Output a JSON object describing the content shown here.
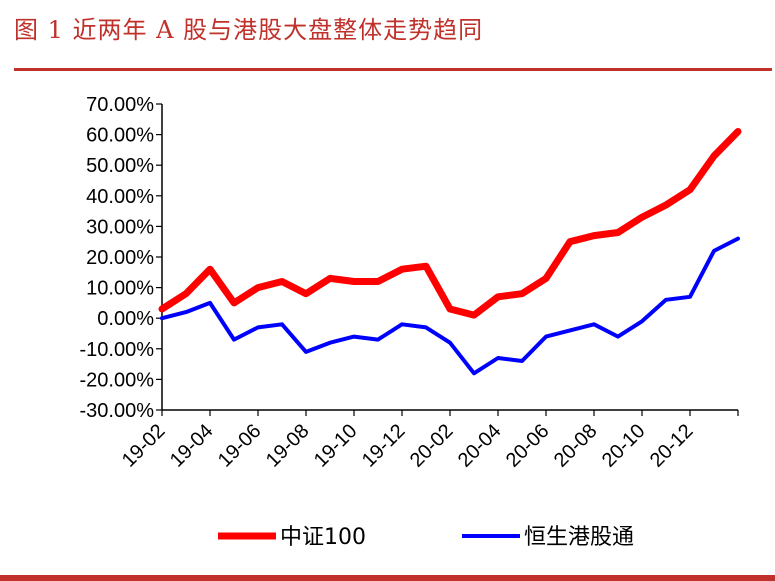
{
  "title": "图 1 近两年 A 股与港股大盘整体走势趋同",
  "colors": {
    "accent": "#c0312b",
    "series_a": "#ff0000",
    "series_b": "#0000ff"
  },
  "chart_data": {
    "type": "line",
    "title": "",
    "xlabel": "",
    "ylabel": "",
    "x_ticks": [
      "19-02",
      "19-04",
      "19-06",
      "19-08",
      "19-10",
      "19-12",
      "20-02",
      "20-04",
      "20-06",
      "20-08",
      "20-10",
      "20-12"
    ],
    "y_ticks": [
      "70.00%",
      "60.00%",
      "50.00%",
      "40.00%",
      "30.00%",
      "20.00%",
      "10.00%",
      "0.00%",
      "-10.00%",
      "-20.00%",
      "-30.00%"
    ],
    "ylim": [
      -30,
      70
    ],
    "xlim": [
      "2019-02",
      "2021-02"
    ],
    "legend_position": "bottom",
    "grid": false,
    "series": [
      {
        "name": "中证100",
        "color": "#ff0000",
        "x": [
          "2019-02",
          "2019-03",
          "2019-04",
          "2019-05",
          "2019-06",
          "2019-07",
          "2019-08",
          "2019-09",
          "2019-10",
          "2019-11",
          "2019-12",
          "2020-01",
          "2020-02",
          "2020-03",
          "2020-04",
          "2020-05",
          "2020-06",
          "2020-07",
          "2020-08",
          "2020-09",
          "2020-10",
          "2020-11",
          "2020-12",
          "2021-01",
          "2021-02"
        ],
        "values": [
          3,
          8,
          16,
          5,
          10,
          12,
          8,
          13,
          12,
          12,
          16,
          17,
          3,
          1,
          7,
          8,
          13,
          25,
          27,
          28,
          33,
          37,
          42,
          53,
          61
        ]
      },
      {
        "name": "恒生港股通",
        "color": "#0000ff",
        "x": [
          "2019-02",
          "2019-03",
          "2019-04",
          "2019-05",
          "2019-06",
          "2019-07",
          "2019-08",
          "2019-09",
          "2019-10",
          "2019-11",
          "2019-12",
          "2020-01",
          "2020-02",
          "2020-03",
          "2020-04",
          "2020-05",
          "2020-06",
          "2020-07",
          "2020-08",
          "2020-09",
          "2020-10",
          "2020-11",
          "2020-12",
          "2021-01",
          "2021-02"
        ],
        "values": [
          0,
          2,
          5,
          -7,
          -3,
          -2,
          -11,
          -8,
          -6,
          -7,
          -2,
          -3,
          -8,
          -18,
          -13,
          -14,
          -6,
          -4,
          -2,
          -6,
          -1,
          6,
          7,
          22,
          26
        ]
      }
    ]
  }
}
